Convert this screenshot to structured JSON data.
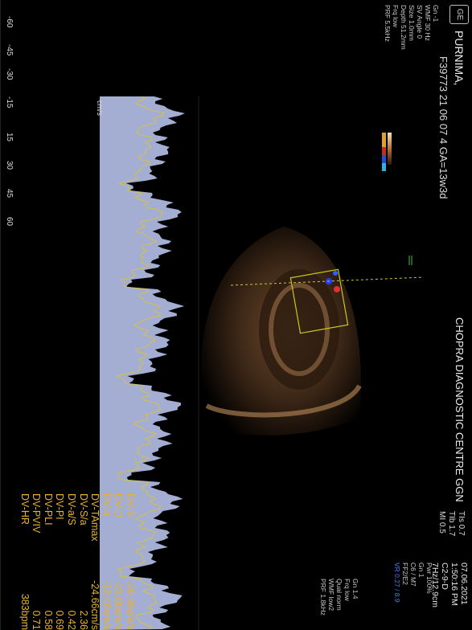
{
  "header": {
    "patient": "PURNIMA,",
    "study_line": "F39773 21 06 07 4  GA=13w3d",
    "clinic": "CHOPRA DIAGNOSTIC CENTRE GGN",
    "logo": "GE"
  },
  "left_params": [
    "Gn -1",
    "WMF 30 Hz",
    "SV Angle 0",
    "Size 1.0mm",
    "Depth 51.2mm",
    "Frq low",
    "PRF 5.5kHz"
  ],
  "indices": [
    "TIs 0.7",
    "TIb 1.7",
    "MI 0.5"
  ],
  "date_block": [
    "07.06.2021",
    "1:50:16 PM",
    "C2-9-D",
    "7Hz/12.9cm"
  ],
  "right_params": [
    "Pwr 100%",
    "Gn 1",
    "C6 / M7",
    "FF2/E2"
  ],
  "right_params2": [
    "Gn 1.4",
    "Frq low",
    "Qual norm",
    "WMF low2",
    "PRF 1.8kHz"
  ],
  "color_mode_label": "VR 0.27 / 8.9",
  "scale": {
    "unit": "cm/s",
    "ticks": [
      "-60",
      "-45",
      "-30",
      "-15",
      "15",
      "30",
      "45",
      "60"
    ]
  },
  "measurements": [
    {
      "name": "DV-S",
      "value": "-29.39cm/s"
    },
    {
      "name": "DV-D",
      "value": "-23.80cm/s"
    },
    {
      "name": "DV-a",
      "value": "-12.46cm/s"
    },
    {
      "name": "DV-TAmax",
      "value": "-24.66cm/s"
    },
    {
      "name": "DV-S/a",
      "value": "2.36"
    },
    {
      "name": "DV-a/S",
      "value": "0.42"
    },
    {
      "name": "DV-PI",
      "value": "0.69"
    },
    {
      "name": "DV-PLI",
      "value": "0.58"
    },
    {
      "name": "DV-PVIV",
      "value": "0.71"
    },
    {
      "name": "DV-HR",
      "value": "383bpm"
    }
  ],
  "colors": {
    "measurement_text": "#e8b32a",
    "doppler_fill": "#b9c6ef",
    "trace": "#d6c04a"
  }
}
